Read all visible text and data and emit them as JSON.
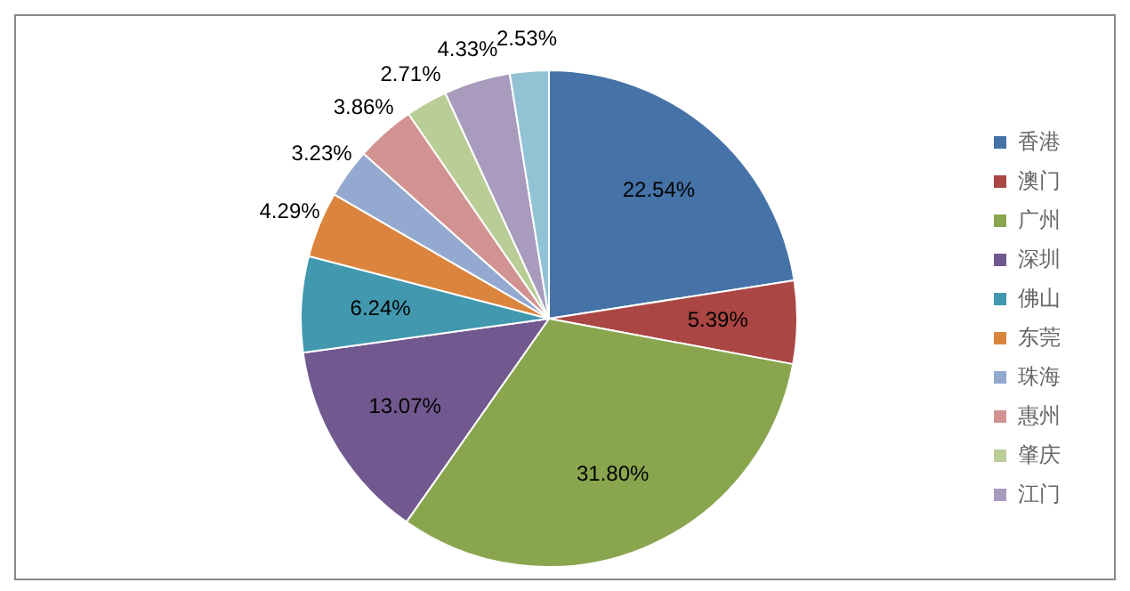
{
  "chart_data": {
    "type": "pie",
    "categories": [
      "香港",
      "澳门",
      "广州",
      "深圳",
      "佛山",
      "东莞",
      "珠海",
      "惠州",
      "肇庆",
      "江门",
      null
    ],
    "values": [
      22.54,
      5.39,
      31.8,
      13.07,
      6.24,
      4.29,
      3.23,
      3.86,
      2.71,
      4.33,
      2.53
    ],
    "colors": [
      "#4572a7",
      "#aa4643",
      "#89a54e",
      "#71588f",
      "#4198af",
      "#db843d",
      "#93a9cf",
      "#d19392",
      "#b9cd96",
      "#a99bbd",
      "#92c3d5"
    ],
    "value_labels": [
      "22.54%",
      "5.39%",
      "31.80%",
      "13.07%",
      "6.24%",
      "4.29%",
      "3.23%",
      "3.86%",
      "2.71%",
      "4.33%",
      "2.53%"
    ],
    "legend": "right"
  }
}
